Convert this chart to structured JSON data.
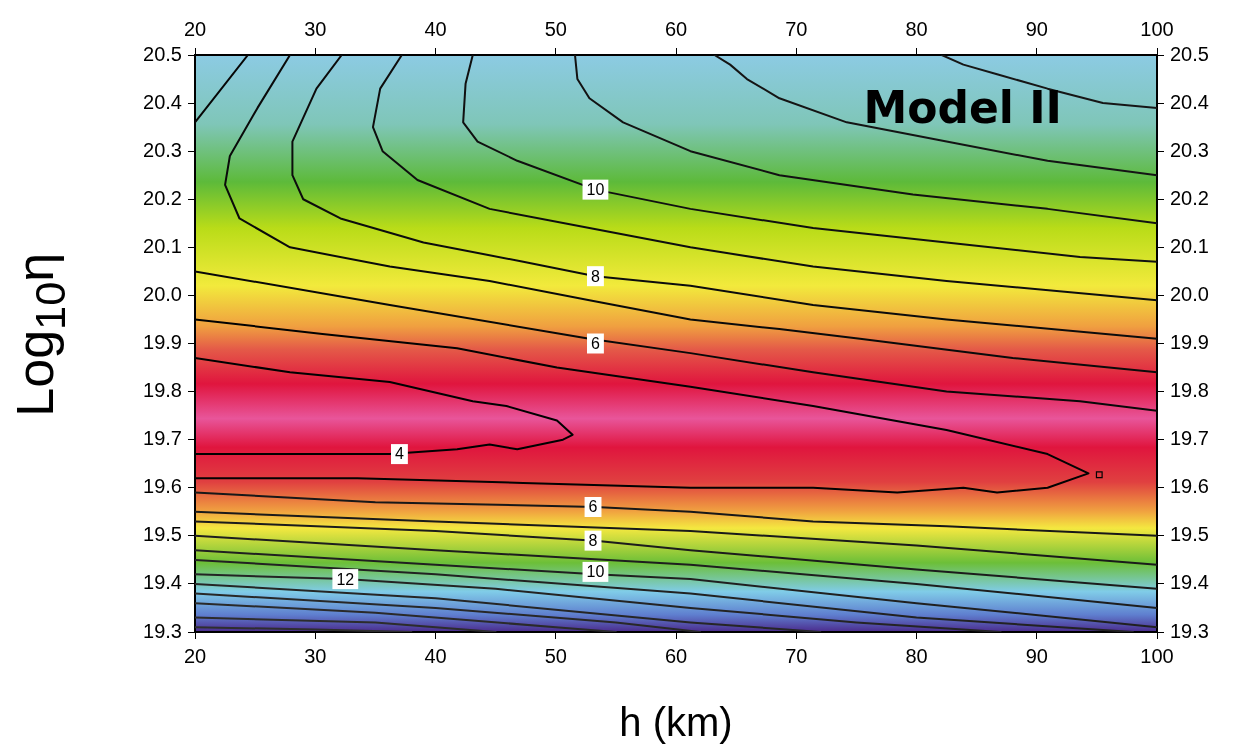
{
  "chart_data": {
    "type": "line",
    "xlabel": "h (km)",
    "ylabel": "Log$_{10}$η",
    "xlim": [
      20,
      100
    ],
    "xticks": [
      20,
      30,
      40,
      50,
      60,
      70,
      80,
      90,
      100
    ],
    "x2lim": [
      20,
      100
    ],
    "x2ticks": [
      20,
      30,
      40,
      50,
      60,
      70,
      80,
      90,
      100
    ],
    "ylim": [
      19.3,
      20.5
    ],
    "yticks": [
      19.3,
      19.4,
      19.5,
      19.6,
      19.7,
      19.8,
      19.9,
      {
        "value": 20,
        "label": "20.0"
      },
      20.1,
      20.2,
      20.3,
      20.4,
      20.5
    ],
    "y2lim": [
      19.3,
      20.5
    ],
    "y2ticks": [
      19.3,
      19.4,
      19.5,
      19.6,
      19.7,
      19.8,
      19.9,
      {
        "value": 20,
        "label": "20.0"
      },
      20.1,
      20.2,
      20.3,
      20.4,
      20.5
    ],
    "grid": false,
    "legend": false,
    "marker": "none",
    "line_style": "solid",
    "series": [
      {
        "color": "#000000",
        "x": [
          20,
          27.9,
          36.2,
          43.1,
          45.9,
          50.1,
          51.4,
          50.6,
          46.8,
          44.5,
          41.8,
          36.2,
          29.3,
          20
        ],
        "values": [
          19.87,
          19.84,
          19.82,
          19.78,
          19.77,
          19.74,
          19.71,
          19.7,
          19.68,
          19.69,
          19.68,
          19.67,
          19.67,
          19.67
        ]
      },
      {
        "color": "#020202",
        "x": [
          20,
          30.6,
          41.8,
          50.1,
          61.2,
          71.4,
          82.5,
          90.9,
          94.3,
          90.9,
          86.7,
          83.9,
          78.4,
          71.4,
          61.2,
          47.3,
          33.5,
          20
        ],
        "values": [
          19.95,
          19.92,
          19.89,
          19.85,
          19.81,
          19.77,
          19.72,
          19.67,
          19.63,
          19.6,
          19.59,
          19.6,
          19.59,
          19.6,
          19.6,
          19.61,
          19.62,
          19.62
        ]
      },
      {
        "type": "scatter",
        "marker": "square",
        "color": "#040404",
        "x": [
          95.2
        ],
        "values": [
          19.627
        ]
      },
      {
        "color": "#060606",
        "x": [
          20,
          24.4
        ],
        "values": [
          20.36,
          20.5
        ]
      },
      {
        "color": "#080808",
        "x": [
          20,
          36.2,
          52.8,
          61.2,
          71.4,
          82.5,
          93.6,
          100
        ],
        "values": [
          20.05,
          19.98,
          19.91,
          19.88,
          19.84,
          19.8,
          19.78,
          19.76
        ]
      },
      {
        "color": "#0a0a0a",
        "x": [
          27.9,
          25.2,
          22.9,
          22.5,
          23.7,
          27.9,
          36.2,
          44.5,
          52.8,
          61.2,
          68.6,
          75.3,
          88,
          100
        ],
        "values": [
          20.5,
          20.39,
          20.29,
          20.23,
          20.16,
          20.1,
          20.06,
          20.03,
          19.99,
          19.95,
          19.93,
          19.91,
          19.87,
          19.84
        ]
      },
      {
        "color": "#0c0c0c",
        "x": [
          32.2,
          30.1,
          28.1,
          28.1,
          29,
          32.1,
          39,
          47.3,
          53.3,
          61.2,
          71.4,
          82.5,
          100
        ],
        "values": [
          20.5,
          20.43,
          20.32,
          20.25,
          20.2,
          20.16,
          20.11,
          20.07,
          20.04,
          20.02,
          19.98,
          19.95,
          19.91
        ]
      },
      {
        "color": "#0e0e0e",
        "x": [
          37.2,
          35.4,
          34.8,
          35.6,
          38.5,
          44.5,
          52.8,
          61.2,
          71.4,
          82.5,
          100
        ],
        "values": [
          20.5,
          20.43,
          20.35,
          20.3,
          20.24,
          20.18,
          20.14,
          20.1,
          20.06,
          20.03,
          19.99
        ]
      },
      {
        "color": "#101010",
        "x": [
          43.1,
          42.5,
          42.3,
          43.5,
          46.8,
          53.3,
          61.2,
          71.4,
          82.5,
          93.6,
          100
        ],
        "values": [
          20.5,
          20.44,
          20.36,
          20.32,
          20.28,
          20.22,
          20.18,
          20.14,
          20.11,
          20.08,
          20.07
        ]
      },
      {
        "color": "#121212",
        "x": [
          51.6,
          51.8,
          52.8,
          55.6,
          61.2,
          68.6,
          79.7,
          90.9,
          100
        ],
        "values": [
          20.5,
          20.45,
          20.41,
          20.36,
          20.3,
          20.25,
          20.21,
          20.18,
          20.15
        ]
      },
      {
        "color": "#141414",
        "x": [
          63.2,
          64.5,
          65.9,
          68.6,
          74.2,
          82.5,
          90.9,
          100
        ],
        "values": [
          20.5,
          20.48,
          20.45,
          20.41,
          20.36,
          20.32,
          20.28,
          20.25
        ]
      },
      {
        "color": "#161616",
        "x": [
          82.1,
          83.9,
          86.7,
          90.9,
          95.5,
          100
        ],
        "values": [
          20.5,
          20.48,
          20.46,
          20.43,
          20.4,
          20.39
        ]
      },
      {
        "color": "#181818",
        "x": [
          20,
          35,
          53.3,
          61.2,
          71.4,
          82.5,
          100
        ],
        "values": [
          19.59,
          19.57,
          19.56,
          19.55,
          19.53,
          19.52,
          19.5
        ]
      },
      {
        "color": "#1a1a1a",
        "x": [
          20,
          40,
          61.2,
          80,
          100
        ],
        "values": [
          19.55,
          19.53,
          19.51,
          19.48,
          19.44
        ]
      },
      {
        "color": "#1c1c1c",
        "x": [
          20,
          40,
          53.3,
          61.2,
          80,
          100
        ],
        "values": [
          19.53,
          19.51,
          19.49,
          19.47,
          19.43,
          19.39
        ]
      },
      {
        "color": "#1e1e1e",
        "x": [
          20,
          40,
          61.2,
          80,
          100
        ],
        "values": [
          19.5,
          19.47,
          19.44,
          19.4,
          19.35
        ]
      },
      {
        "color": "#202020",
        "x": [
          20,
          40,
          53.3,
          61.2,
          80,
          100
        ],
        "values": [
          19.47,
          19.44,
          19.42,
          19.41,
          19.36,
          19.31
        ]
      },
      {
        "color": "#222222",
        "x": [
          20,
          40,
          61.2,
          80,
          98
        ],
        "values": [
          19.45,
          19.42,
          19.38,
          19.33,
          19.3
        ]
      },
      {
        "color": "#242424",
        "x": [
          20,
          32.5,
          45,
          61.2,
          75,
          87
        ],
        "values": [
          19.42,
          19.41,
          19.39,
          19.35,
          19.32,
          19.3
        ]
      },
      {
        "color": "#262626",
        "x": [
          20,
          40,
          61.2,
          72
        ],
        "values": [
          19.4,
          19.37,
          19.32,
          19.3
        ]
      },
      {
        "color": "#282828",
        "x": [
          20,
          40,
          55,
          62
        ],
        "values": [
          19.38,
          19.35,
          19.32,
          19.3
        ]
      },
      {
        "color": "#2a2a2a",
        "x": [
          20,
          35,
          50,
          55
        ],
        "values": [
          19.36,
          19.34,
          19.31,
          19.3
        ]
      },
      {
        "color": "#2c2c2c",
        "x": [
          20,
          35,
          45
        ],
        "values": [
          19.33,
          19.32,
          19.3
        ]
      },
      {
        "color": "#2e2e2e",
        "x": [
          20,
          30,
          38
        ],
        "values": [
          19.31,
          19.305,
          19.3
        ]
      }
    ],
    "annotations": [
      "Model II",
      {
        "text": "10",
        "x": 53.3,
        "y": 20.22
      },
      {
        "text": "8",
        "x": 53.3,
        "y": 20.04
      },
      {
        "text": "6",
        "x": 53.3,
        "y": 19.9
      },
      {
        "text": "4",
        "x": 37,
        "y": 19.67
      },
      {
        "text": "6",
        "x": 53.1,
        "y": 19.56
      },
      {
        "text": "8",
        "x": 53.1,
        "y": 19.49
      },
      {
        "text": "10",
        "x": 53.3,
        "y": 19.425
      },
      {
        "text": "12",
        "x": 32.5,
        "y": 19.41
      }
    ]
  }
}
